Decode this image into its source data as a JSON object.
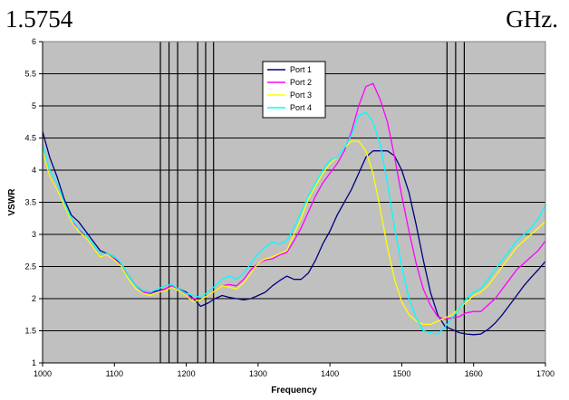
{
  "doc": {
    "text_left": "1.5754",
    "text_right": "GHz."
  },
  "chart_data": {
    "type": "line",
    "title": "",
    "xlabel": "Frequency",
    "ylabel": "VSWR",
    "xlim": [
      1000,
      1700
    ],
    "ylim": [
      1,
      6
    ],
    "x_ticks": [
      1000,
      1100,
      1200,
      1300,
      1400,
      1500,
      1600,
      1700
    ],
    "y_ticks": [
      1,
      1.5,
      2,
      2.5,
      3,
      3.5,
      4,
      4.5,
      5,
      5.5,
      6
    ],
    "x_tick_labels": [
      "1000",
      "1100",
      "1200",
      "1300",
      "1400",
      "1500",
      "1600",
      "1700"
    ],
    "y_tick_labels": [
      "1",
      "1.5",
      "2",
      "2.5",
      "3",
      "3.5",
      "4",
      "4.5",
      "5",
      "5.5",
      "6"
    ],
    "grid": "horizontal",
    "plot_background": "#c0c0c0",
    "legend_position": "top-center",
    "vertical_markers": [
      1164,
      1176,
      1188,
      1216,
      1227,
      1238,
      1563,
      1575,
      1587
    ],
    "series": [
      {
        "name": "Port 1",
        "color": "#000080",
        "x": [
          1000,
          1010,
          1020,
          1030,
          1040,
          1050,
          1060,
          1070,
          1080,
          1090,
          1100,
          1110,
          1120,
          1130,
          1140,
          1150,
          1160,
          1170,
          1180,
          1190,
          1200,
          1210,
          1220,
          1230,
          1240,
          1250,
          1260,
          1270,
          1280,
          1290,
          1300,
          1310,
          1320,
          1330,
          1340,
          1350,
          1360,
          1370,
          1380,
          1390,
          1400,
          1410,
          1420,
          1430,
          1440,
          1450,
          1460,
          1470,
          1480,
          1490,
          1500,
          1510,
          1520,
          1530,
          1540,
          1550,
          1560,
          1570,
          1580,
          1590,
          1600,
          1610,
          1620,
          1630,
          1640,
          1650,
          1660,
          1670,
          1680,
          1690,
          1700
        ],
        "y": [
          4.6,
          4.2,
          3.9,
          3.55,
          3.3,
          3.2,
          3.05,
          2.9,
          2.75,
          2.7,
          2.65,
          2.5,
          2.35,
          2.2,
          2.12,
          2.1,
          2.12,
          2.15,
          2.2,
          2.15,
          2.1,
          2.0,
          1.88,
          1.93,
          2.0,
          2.05,
          2.02,
          2.0,
          1.98,
          2.0,
          2.05,
          2.1,
          2.2,
          2.28,
          2.35,
          2.3,
          2.3,
          2.4,
          2.6,
          2.85,
          3.05,
          3.3,
          3.5,
          3.7,
          3.95,
          4.2,
          4.3,
          4.3,
          4.3,
          4.22,
          4.0,
          3.65,
          3.15,
          2.6,
          2.1,
          1.75,
          1.57,
          1.52,
          1.47,
          1.45,
          1.44,
          1.45,
          1.52,
          1.62,
          1.75,
          1.9,
          2.05,
          2.2,
          2.33,
          2.45,
          2.58
        ]
      },
      {
        "name": "Port 2",
        "color": "#ff00ff",
        "x": [
          1000,
          1010,
          1020,
          1030,
          1040,
          1050,
          1060,
          1070,
          1080,
          1090,
          1100,
          1110,
          1120,
          1130,
          1140,
          1150,
          1160,
          1170,
          1180,
          1190,
          1200,
          1210,
          1220,
          1230,
          1240,
          1250,
          1260,
          1270,
          1280,
          1290,
          1300,
          1310,
          1320,
          1330,
          1340,
          1350,
          1360,
          1370,
          1380,
          1390,
          1400,
          1410,
          1420,
          1430,
          1440,
          1450,
          1460,
          1470,
          1480,
          1490,
          1500,
          1510,
          1520,
          1530,
          1540,
          1550,
          1560,
          1570,
          1580,
          1590,
          1600,
          1610,
          1620,
          1630,
          1640,
          1650,
          1660,
          1670,
          1680,
          1690,
          1700
        ],
        "y": [
          4.3,
          3.9,
          3.7,
          3.45,
          3.2,
          3.1,
          2.95,
          2.8,
          2.65,
          2.68,
          2.62,
          2.5,
          2.35,
          2.2,
          2.1,
          2.08,
          2.1,
          2.15,
          2.2,
          2.15,
          2.05,
          2.0,
          1.98,
          2.05,
          2.12,
          2.2,
          2.22,
          2.2,
          2.3,
          2.45,
          2.55,
          2.6,
          2.62,
          2.68,
          2.72,
          2.9,
          3.1,
          3.35,
          3.6,
          3.8,
          3.95,
          4.1,
          4.3,
          4.6,
          5.0,
          5.3,
          5.35,
          5.1,
          4.75,
          4.2,
          3.6,
          3.05,
          2.55,
          2.15,
          1.9,
          1.72,
          1.68,
          1.7,
          1.72,
          1.78,
          1.8,
          1.8,
          1.9,
          2.0,
          2.15,
          2.3,
          2.45,
          2.55,
          2.65,
          2.75,
          2.9
        ]
      },
      {
        "name": "Port 3",
        "color": "#ffff00",
        "x": [
          1000,
          1010,
          1020,
          1030,
          1040,
          1050,
          1060,
          1070,
          1080,
          1090,
          1100,
          1110,
          1120,
          1130,
          1140,
          1150,
          1160,
          1170,
          1180,
          1190,
          1200,
          1210,
          1220,
          1230,
          1240,
          1250,
          1260,
          1270,
          1280,
          1290,
          1300,
          1310,
          1320,
          1330,
          1340,
          1350,
          1360,
          1370,
          1380,
          1390,
          1400,
          1410,
          1420,
          1430,
          1440,
          1450,
          1460,
          1470,
          1480,
          1490,
          1500,
          1510,
          1520,
          1530,
          1540,
          1550,
          1560,
          1570,
          1580,
          1590,
          1600,
          1610,
          1620,
          1630,
          1640,
          1650,
          1660,
          1670,
          1680,
          1690,
          1700
        ],
        "y": [
          4.3,
          3.9,
          3.7,
          3.45,
          3.2,
          3.05,
          2.95,
          2.8,
          2.65,
          2.68,
          2.6,
          2.5,
          2.3,
          2.15,
          2.08,
          2.05,
          2.1,
          2.12,
          2.18,
          2.12,
          2.05,
          1.95,
          1.98,
          2.05,
          2.12,
          2.2,
          2.18,
          2.15,
          2.25,
          2.4,
          2.55,
          2.62,
          2.65,
          2.7,
          2.75,
          3.0,
          3.25,
          3.55,
          3.75,
          3.95,
          4.1,
          4.2,
          4.35,
          4.45,
          4.45,
          4.3,
          3.95,
          3.4,
          2.8,
          2.3,
          1.95,
          1.75,
          1.65,
          1.6,
          1.6,
          1.65,
          1.7,
          1.75,
          1.85,
          1.95,
          2.05,
          2.1,
          2.2,
          2.35,
          2.5,
          2.65,
          2.8,
          2.9,
          3.0,
          3.1,
          3.2
        ]
      },
      {
        "name": "Port 4",
        "color": "#00ffff",
        "x": [
          1000,
          1010,
          1020,
          1030,
          1040,
          1050,
          1060,
          1070,
          1080,
          1090,
          1100,
          1110,
          1120,
          1130,
          1140,
          1150,
          1160,
          1170,
          1180,
          1190,
          1200,
          1210,
          1220,
          1230,
          1240,
          1250,
          1260,
          1270,
          1280,
          1290,
          1300,
          1310,
          1320,
          1330,
          1340,
          1350,
          1360,
          1370,
          1380,
          1390,
          1400,
          1410,
          1420,
          1430,
          1440,
          1450,
          1460,
          1470,
          1480,
          1490,
          1500,
          1510,
          1520,
          1530,
          1540,
          1550,
          1560,
          1570,
          1580,
          1590,
          1600,
          1610,
          1620,
          1630,
          1640,
          1650,
          1660,
          1670,
          1680,
          1690,
          1700
        ],
        "y": [
          4.4,
          4.0,
          3.8,
          3.5,
          3.25,
          3.1,
          3.0,
          2.85,
          2.7,
          2.7,
          2.65,
          2.55,
          2.35,
          2.2,
          2.12,
          2.1,
          2.15,
          2.2,
          2.22,
          2.15,
          2.08,
          2.05,
          2.02,
          2.1,
          2.2,
          2.3,
          2.35,
          2.3,
          2.4,
          2.55,
          2.7,
          2.8,
          2.88,
          2.85,
          2.9,
          3.1,
          3.35,
          3.6,
          3.8,
          4.0,
          4.15,
          4.2,
          4.35,
          4.55,
          4.85,
          4.9,
          4.75,
          4.4,
          3.8,
          3.1,
          2.5,
          2.0,
          1.7,
          1.5,
          1.47,
          1.45,
          1.55,
          1.7,
          1.85,
          2.0,
          2.1,
          2.15,
          2.3,
          2.45,
          2.6,
          2.75,
          2.9,
          3.0,
          3.1,
          3.25,
          3.45
        ]
      }
    ]
  }
}
